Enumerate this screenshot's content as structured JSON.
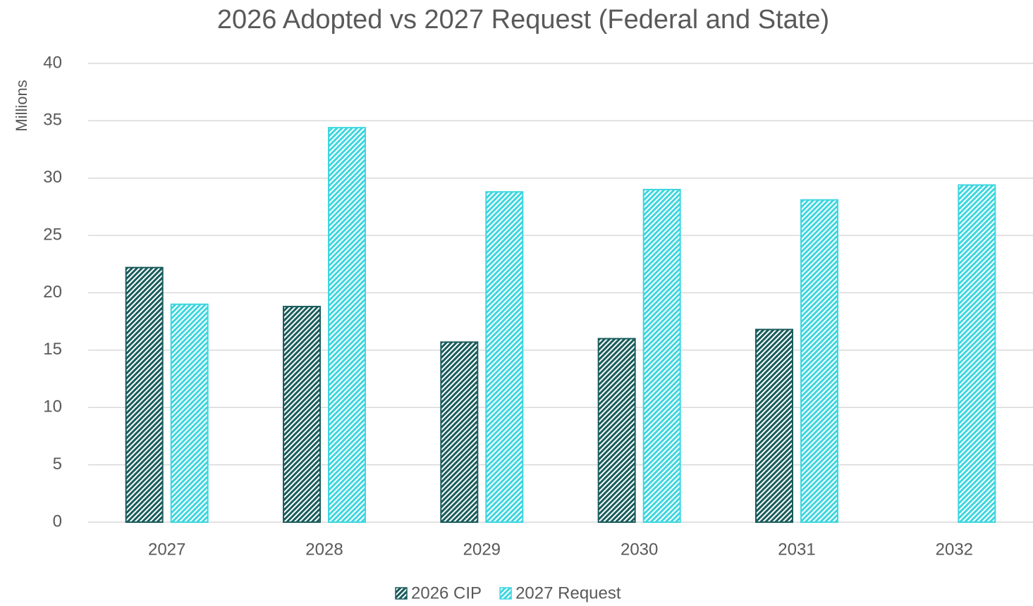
{
  "chart_data": {
    "type": "bar",
    "title": "2026 Adopted vs 2027 Request (Federal and State)",
    "y_label": "Millions",
    "categories": [
      "2027",
      "2028",
      "2029",
      "2030",
      "2031",
      "2032"
    ],
    "series": [
      {
        "name": "2026 CIP",
        "color": "#1a5c5c",
        "values": [
          22.2,
          18.8,
          15.7,
          16.0,
          16.8,
          null
        ]
      },
      {
        "name": "2027 Request",
        "color": "#3dd6df",
        "values": [
          19.0,
          34.4,
          28.8,
          29.0,
          28.1,
          29.4
        ]
      }
    ],
    "ylim": [
      0,
      40
    ],
    "yticks": [
      0,
      5,
      10,
      15,
      20,
      25,
      30,
      35,
      40
    ],
    "grid": true,
    "hatched": true,
    "legend": "bottom"
  }
}
